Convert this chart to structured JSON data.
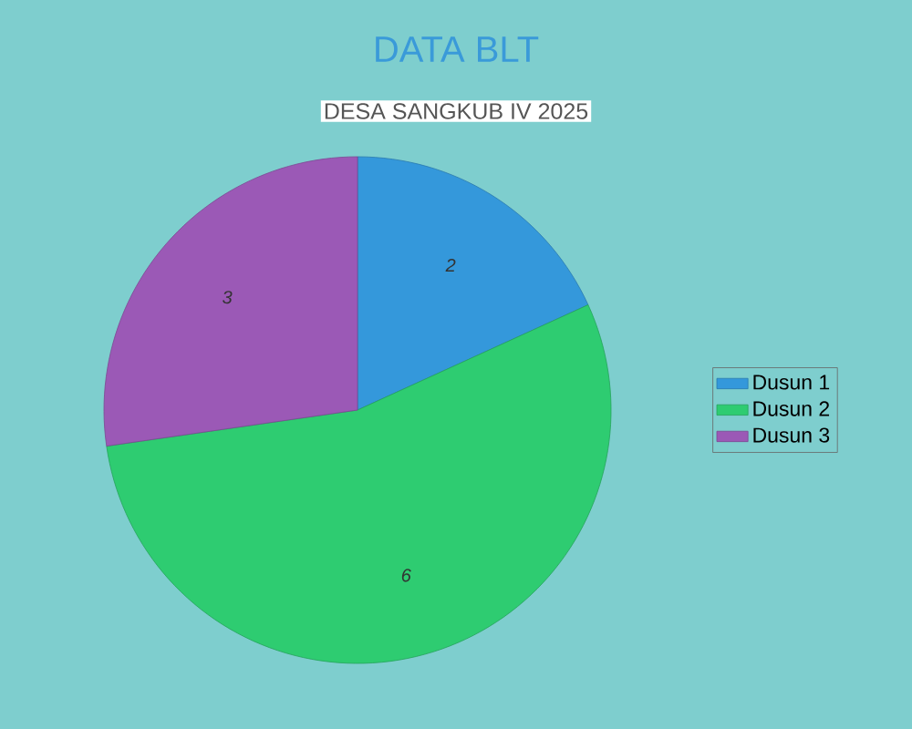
{
  "chart_data": {
    "type": "pie",
    "title": "DATA BLT",
    "subtitle": "DESA SANGKUB IV 2025",
    "categories": [
      "Dusun 1",
      "Dusun 2",
      "Dusun 3"
    ],
    "values": [
      2,
      6,
      3
    ],
    "colors": [
      "#3498db",
      "#2ecc71",
      "#9b59b6"
    ],
    "data_labels": true,
    "legend": "right"
  }
}
